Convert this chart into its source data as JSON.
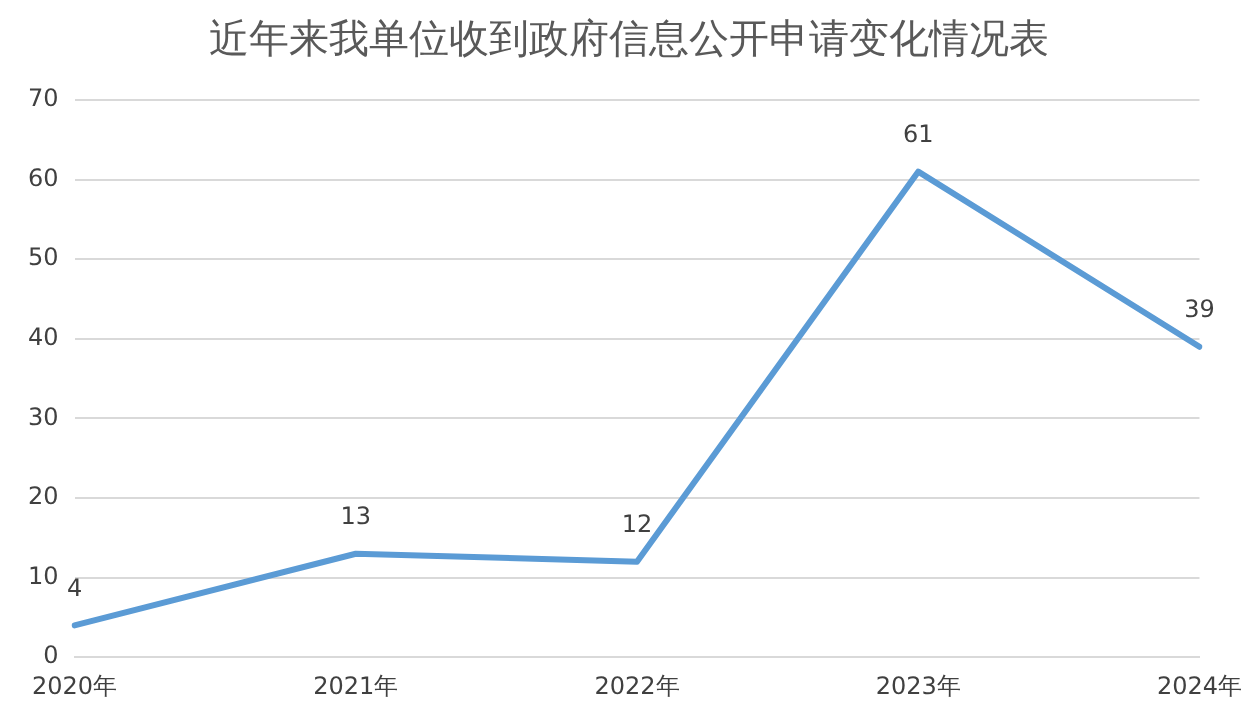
{
  "chart_data": {
    "type": "line",
    "title": "近年来我单位收到政府信息公开申请变化情况表",
    "categories": [
      "2020年",
      "2021年",
      "2022年",
      "2023年",
      "2024年"
    ],
    "series": [
      {
        "color": "#5b9bd5",
        "values": [
          4,
          13,
          12,
          61,
          39
        ]
      }
    ],
    "ylim": [
      0,
      70
    ],
    "yticks": [
      0,
      10,
      20,
      30,
      40,
      50,
      60,
      70
    ],
    "grid": "y",
    "legend": false,
    "marker": "none",
    "line_style": "solid",
    "data_labels": true
  }
}
